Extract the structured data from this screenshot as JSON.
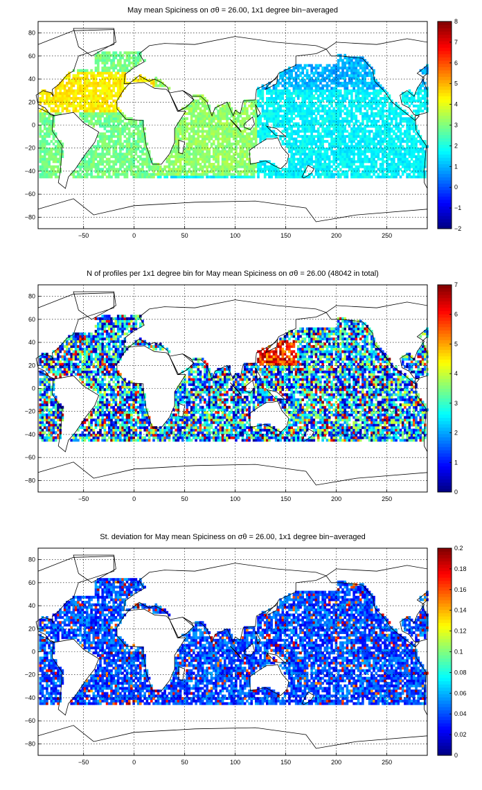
{
  "chart_data": [
    {
      "type": "heatmap",
      "title": "May mean Spiciness on σθ = 26.00, 1x1 degree bin−averaged",
      "xlim": [
        -95,
        290
      ],
      "ylim": [
        -90,
        90
      ],
      "xticks": [
        -50,
        0,
        50,
        100,
        150,
        200,
        250
      ],
      "yticks": [
        -80,
        -60,
        -40,
        -20,
        0,
        20,
        40,
        60,
        80
      ],
      "grid": true,
      "colorbar": {
        "min": -2,
        "max": 8,
        "ticks": [
          -2,
          -1,
          0,
          1,
          2,
          3,
          4,
          5,
          6,
          7,
          8
        ],
        "colormap": "jet"
      },
      "field": "spiciness"
    },
    {
      "type": "heatmap",
      "title": "N of profiles per 1x1 degree bin for May mean Spiciness on σθ = 26.00 (48042 in total)",
      "xlim": [
        -95,
        290
      ],
      "ylim": [
        -90,
        90
      ],
      "xticks": [
        -50,
        0,
        50,
        100,
        150,
        200,
        250
      ],
      "yticks": [
        -80,
        -60,
        -40,
        -20,
        0,
        20,
        40,
        60,
        80
      ],
      "grid": true,
      "colorbar": {
        "min": 0,
        "max": 7,
        "ticks": [
          0,
          1,
          2,
          3,
          4,
          5,
          6,
          7
        ],
        "colormap": "jet"
      },
      "field": "count"
    },
    {
      "type": "heatmap",
      "title": "St. deviation for May mean Spiciness on σθ = 26.00, 1x1 degree bin−averaged",
      "xlim": [
        -95,
        290
      ],
      "ylim": [
        -90,
        90
      ],
      "xticks": [
        -50,
        0,
        50,
        100,
        150,
        200,
        250
      ],
      "yticks": [
        -80,
        -60,
        -40,
        -20,
        0,
        20,
        40,
        60,
        80
      ],
      "grid": true,
      "colorbar": {
        "min": 0,
        "max": 0.2,
        "ticks": [
          0,
          0.02,
          0.04,
          0.06,
          0.08,
          0.1,
          0.12,
          0.14,
          0.16,
          0.18,
          0.2
        ],
        "colormap": "jet"
      },
      "field": "stddev"
    }
  ]
}
